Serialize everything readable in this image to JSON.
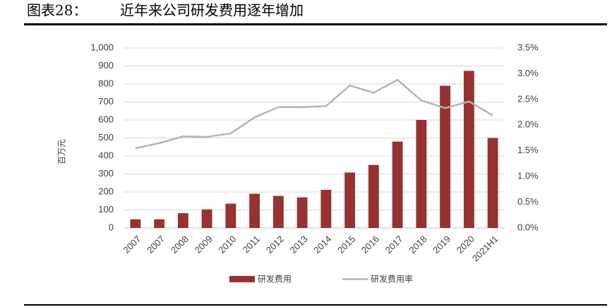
{
  "header": {
    "label": "图表28：",
    "title": "近年来公司研发费用逐年增加"
  },
  "chart_data": {
    "type": "bar",
    "y_label": "百万元",
    "categories": [
      "2007",
      "2007",
      "2008",
      "2009",
      "2010",
      "2011",
      "2012",
      "2013",
      "2014",
      "2015",
      "2016",
      "2017",
      "2018",
      "2019",
      "2020",
      "2021H1"
    ],
    "series": [
      {
        "name": "研发费用",
        "type": "bar",
        "color": "#963232",
        "values": [
          48,
          48,
          82,
          103,
          135,
          190,
          178,
          170,
          212,
          308,
          350,
          480,
          600,
          790,
          873,
          500
        ]
      },
      {
        "name": "研发费用率",
        "type": "line",
        "axis": "y2",
        "color": "#b4b4b4",
        "values": [
          1.55,
          1.65,
          1.78,
          1.77,
          1.84,
          2.15,
          2.35,
          2.35,
          2.37,
          2.77,
          2.63,
          2.88,
          2.48,
          2.33,
          2.46,
          2.19
        ]
      }
    ],
    "ylim": [
      0,
      1000
    ],
    "yticks": [
      0,
      100,
      200,
      300,
      400,
      500,
      600,
      700,
      800,
      900,
      {
        "value": 1000,
        "label": "1,000"
      }
    ],
    "y2lim": [
      0,
      3.5
    ],
    "y2ticks": [
      {
        "value": 0,
        "label": "0.0%"
      },
      {
        "value": 0.5,
        "label": "0.5%"
      },
      {
        "value": 1,
        "label": "1.0%"
      },
      {
        "value": 1.5,
        "label": "1.5%"
      },
      {
        "value": 2,
        "label": "2.0%"
      },
      {
        "value": 2.5,
        "label": "2.5%"
      },
      {
        "value": 3,
        "label": "3.0%"
      },
      {
        "value": 3.5,
        "label": "3.5%"
      }
    ],
    "grid": true
  }
}
